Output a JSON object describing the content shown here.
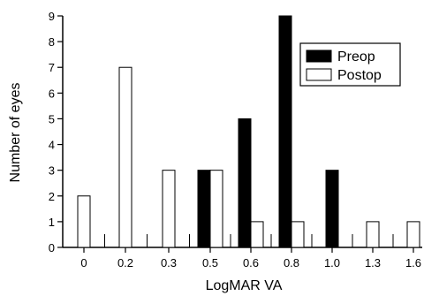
{
  "chart_data": {
    "type": "bar",
    "xlabel": "LogMAR VA",
    "ylabel": "Number of eyes",
    "categories": [
      "0",
      "0.2",
      "0.3",
      "0.5",
      "0.6",
      "0.8",
      "1.0",
      "1.3",
      "1.6"
    ],
    "series": [
      {
        "name": "Preop",
        "color": "#000000",
        "values": [
          0,
          0,
          0,
          3,
          5,
          9,
          3,
          0,
          0
        ]
      },
      {
        "name": "Postop",
        "color": "#ffffff",
        "values": [
          2,
          7,
          3,
          3,
          1,
          1,
          0,
          1,
          1
        ]
      }
    ],
    "ylim": [
      0,
      9
    ],
    "yticks": [
      "0",
      "1",
      "2",
      "3",
      "4",
      "5",
      "6",
      "7",
      "8",
      "9"
    ],
    "grid": false,
    "legend": "top-right"
  }
}
